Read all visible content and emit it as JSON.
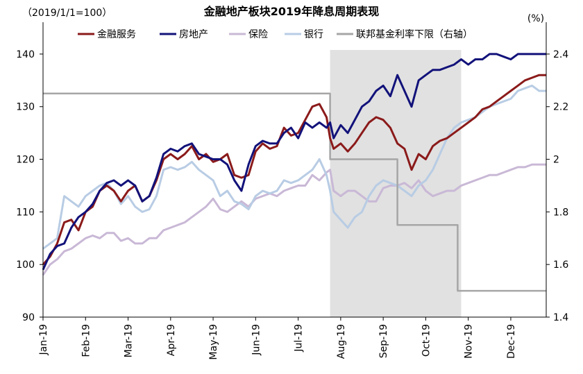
{
  "title": "金融地产板块2019年降息周期表现",
  "left_note": "（2019/1/1=100）",
  "right_note": "(%)",
  "chart_data": {
    "type": "line",
    "title": "金融地产板块2019年降息周期表现",
    "x_ticks": [
      "Jan-19",
      "Feb-19",
      "Mar-19",
      "Apr-19",
      "May-19",
      "Jun-19",
      "Jul-19",
      "Aug-19",
      "Sep-19",
      "Oct-19",
      "Nov-19",
      "Dec-19"
    ],
    "x_tick_index": [
      0,
      12,
      24,
      36,
      48,
      60,
      72,
      84,
      96,
      108,
      120,
      132
    ],
    "x_range_index": [
      0,
      142
    ],
    "ylim": [
      90,
      145
    ],
    "y_ticks": [
      90,
      100,
      110,
      120,
      130,
      140
    ],
    "y2lim": [
      1.4,
      2.5
    ],
    "y2_ticks": [
      1.4,
      1.6,
      1.8,
      2,
      2.2,
      2.4
    ],
    "y2_tick_labels": [
      "1.4",
      "1.6",
      "1.8",
      "2",
      "2.2",
      "2.4"
    ],
    "shaded_period_index": [
      81,
      118
    ],
    "legend_position": "top",
    "grid": false,
    "series": [
      {
        "name": "金融服务",
        "color": "#8b1a1a",
        "axis": "left",
        "x": [
          0,
          2,
          4,
          6,
          8,
          10,
          12,
          14,
          16,
          18,
          20,
          22,
          24,
          26,
          28,
          30,
          32,
          34,
          36,
          38,
          40,
          42,
          44,
          46,
          48,
          50,
          52,
          54,
          56,
          58,
          60,
          62,
          64,
          66,
          68,
          70,
          72,
          74,
          76,
          78,
          80,
          81,
          82,
          84,
          86,
          88,
          90,
          92,
          94,
          96,
          98,
          100,
          102,
          104,
          106,
          108,
          110,
          112,
          114,
          116,
          118,
          120,
          122,
          124,
          126,
          128,
          130,
          132,
          134,
          136,
          138,
          140,
          142
        ],
        "values": [
          100,
          101.5,
          104,
          108,
          108.5,
          106.5,
          110,
          111,
          114,
          115,
          114,
          112,
          114,
          115,
          112,
          113,
          116,
          120,
          121,
          120,
          121,
          122.5,
          120,
          121,
          119.5,
          120,
          121,
          117,
          116.5,
          117,
          121.5,
          123,
          122,
          122.5,
          126,
          124.5,
          125,
          127.5,
          130,
          130.5,
          128,
          124,
          122,
          123,
          121.5,
          123,
          125,
          127,
          128,
          127.5,
          126,
          123,
          122,
          118,
          121,
          120,
          122.5,
          123.5,
          124,
          125,
          126,
          127,
          128,
          129.5,
          130,
          131,
          132,
          133,
          134,
          135,
          135.5,
          136,
          136
        ]
      },
      {
        "name": "房地产",
        "color": "#12127a",
        "axis": "left",
        "x": [
          0,
          2,
          4,
          6,
          8,
          10,
          12,
          14,
          16,
          18,
          20,
          22,
          24,
          26,
          28,
          30,
          32,
          34,
          36,
          38,
          40,
          42,
          44,
          46,
          48,
          50,
          52,
          54,
          56,
          58,
          60,
          62,
          64,
          66,
          68,
          70,
          72,
          74,
          76,
          78,
          80,
          81,
          82,
          84,
          86,
          88,
          90,
          92,
          94,
          96,
          98,
          100,
          102,
          104,
          106,
          108,
          110,
          112,
          114,
          116,
          118,
          120,
          122,
          124,
          126,
          128,
          130,
          132,
          134,
          136,
          138,
          140,
          142
        ],
        "values": [
          99,
          102,
          103.5,
          104,
          107,
          109,
          110,
          111.5,
          114,
          115.5,
          116,
          115,
          116,
          115,
          112,
          113,
          116.5,
          121,
          122,
          121.5,
          122.5,
          123,
          121,
          120.5,
          120,
          120,
          119,
          116,
          114,
          119,
          122.5,
          123.5,
          123,
          123,
          125,
          126,
          124,
          127,
          126,
          127,
          126,
          127,
          124,
          126.5,
          125,
          127.5,
          130,
          131,
          133,
          134,
          132,
          136,
          133,
          130,
          135,
          136,
          137,
          137,
          137.5,
          138,
          139,
          138,
          139,
          139,
          140,
          140,
          139.5,
          139,
          140,
          140,
          140,
          140,
          140
        ]
      },
      {
        "name": "保险",
        "color": "#c9b8d6",
        "axis": "left",
        "x": [
          0,
          2,
          4,
          6,
          8,
          10,
          12,
          14,
          16,
          18,
          20,
          22,
          24,
          26,
          28,
          30,
          32,
          34,
          36,
          38,
          40,
          42,
          44,
          46,
          48,
          50,
          52,
          54,
          56,
          58,
          60,
          62,
          64,
          66,
          68,
          70,
          72,
          74,
          76,
          78,
          80,
          81,
          82,
          84,
          86,
          88,
          90,
          92,
          94,
          96,
          98,
          100,
          102,
          104,
          106,
          108,
          110,
          112,
          114,
          116,
          118,
          120,
          122,
          124,
          126,
          128,
          130,
          132,
          134,
          136,
          138,
          140,
          142
        ],
        "values": [
          98,
          100,
          101,
          102.5,
          103,
          104,
          105,
          105.5,
          105,
          106,
          106,
          104.5,
          105,
          104,
          104,
          105,
          105,
          106.5,
          107,
          107.5,
          108,
          109,
          110,
          111,
          112.5,
          110.5,
          110,
          111,
          112,
          111,
          112.5,
          113,
          113.5,
          113,
          114,
          114.5,
          115,
          115,
          117,
          116,
          117.5,
          118,
          114,
          113,
          114,
          114,
          113,
          112,
          112,
          114.5,
          115,
          115,
          115.5,
          114.5,
          116,
          114,
          113,
          113.5,
          114,
          114,
          115,
          115.5,
          116,
          116.5,
          117,
          117,
          117.5,
          118,
          118.5,
          118.5,
          119,
          119,
          119
        ]
      },
      {
        "name": "银行",
        "color": "#b8cce4",
        "axis": "left",
        "x": [
          0,
          2,
          4,
          6,
          8,
          10,
          12,
          14,
          16,
          18,
          20,
          22,
          24,
          26,
          28,
          30,
          32,
          34,
          36,
          38,
          40,
          42,
          44,
          46,
          48,
          50,
          52,
          54,
          56,
          58,
          60,
          62,
          64,
          66,
          68,
          70,
          72,
          74,
          76,
          78,
          80,
          81,
          82,
          84,
          86,
          88,
          90,
          92,
          94,
          96,
          98,
          100,
          102,
          104,
          106,
          108,
          110,
          112,
          114,
          116,
          118,
          120,
          122,
          124,
          126,
          128,
          130,
          132,
          134,
          136,
          138,
          140,
          142
        ],
        "values": [
          103,
          104,
          105,
          113,
          112,
          111,
          113,
          114,
          115,
          115.5,
          114,
          111.5,
          113,
          111,
          110,
          110.5,
          113,
          118,
          118.5,
          118,
          118.5,
          119.5,
          118,
          117,
          116,
          113,
          114,
          112,
          111.5,
          110.5,
          113,
          114,
          113.5,
          114,
          116,
          115.5,
          116,
          117,
          118,
          120,
          117,
          114,
          110,
          108.5,
          107,
          109,
          110,
          113,
          115,
          116,
          115.5,
          115,
          114,
          113,
          115,
          116,
          118,
          121,
          124,
          126,
          127,
          127.5,
          128,
          129,
          130,
          130.5,
          131,
          131.5,
          133,
          133.5,
          134,
          133,
          133
        ]
      },
      {
        "name": "联邦基金利率下限（右轴）",
        "color": "#a6a6a6",
        "axis": "right",
        "step": true,
        "x": [
          0,
          81,
          81,
          100,
          100,
          117,
          117,
          142
        ],
        "values": [
          2.25,
          2.25,
          2.0,
          2.0,
          1.75,
          1.75,
          1.5,
          1.5
        ]
      }
    ]
  }
}
